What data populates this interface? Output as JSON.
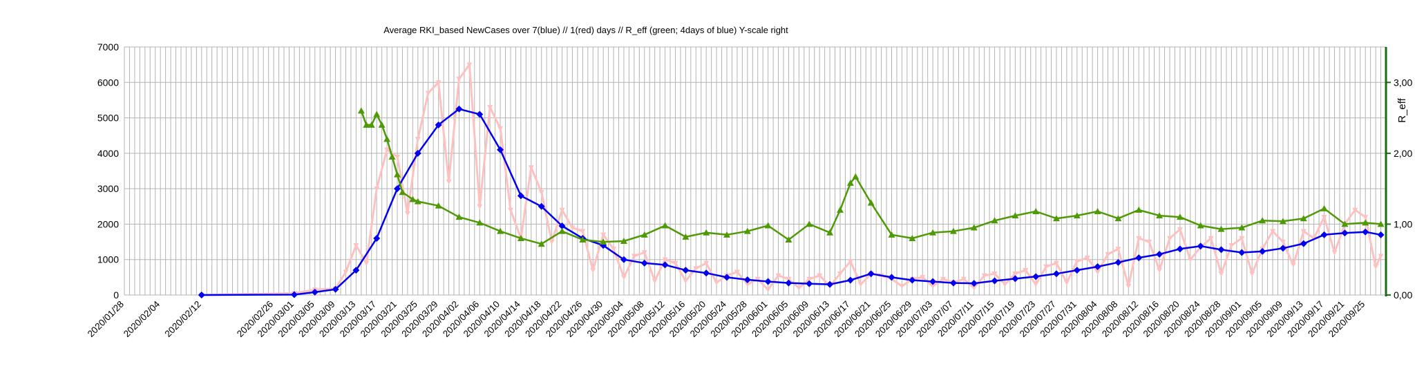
{
  "chart_data": {
    "type": "line",
    "title": "Average RKI_based NewCases over 7(blue) // 1(red) days //  R_eff (green; 4days of blue) Y-scale right",
    "y_label_left": "",
    "y_label_right": "R_eff",
    "ylim_left": [
      0,
      7000
    ],
    "ylim_right": [
      0,
      3.5
    ],
    "y_ticks_left": [
      "0",
      "1000",
      "2000",
      "3000",
      "4000",
      "5000",
      "6000",
      "7000"
    ],
    "y_ticks_right": [
      "0,00",
      "1,00",
      "2,00",
      "3,00"
    ],
    "x_tick_labels": [
      "2020/01/28",
      "2020/02/04",
      "2020/02/12",
      "2020/02/26",
      "2020/03/01",
      "2020/03/05",
      "2020/03/09",
      "2020/03/13",
      "2020/03/17",
      "2020/03/21",
      "2020/03/25",
      "2020/03/29",
      "2020/04/02",
      "2020/04/06",
      "2020/04/10",
      "2020/04/14",
      "2020/04/18",
      "2020/04/22",
      "2020/04/26",
      "2020/04/30",
      "2020/05/04",
      "2020/05/08",
      "2020/05/12",
      "2020/05/16",
      "2020/05/20",
      "2020/05/24",
      "2020/05/28",
      "2020/06/01",
      "2020/06/05",
      "2020/06/09",
      "2020/06/13",
      "2020/06/17",
      "2020/06/21",
      "2020/06/25",
      "2020/06/29",
      "2020/07/03",
      "2020/07/07",
      "2020/07/11",
      "2020/07/15",
      "2020/07/19",
      "2020/07/23",
      "2020/07/27",
      "2020/07/31",
      "2020/08/04",
      "2020/08/08",
      "2020/08/12",
      "2020/08/16",
      "2020/08/20",
      "2020/08/24",
      "2020/08/28",
      "2020/09/01",
      "2020/09/05",
      "2020/09/09",
      "2020/09/13",
      "2020/09/17",
      "2020/09/21",
      "2020/09/25"
    ],
    "grid": "vertical and horizontal",
    "colors": {
      "blue": "#0000ee",
      "red": "#ffc0c0",
      "green": "#4e9a06",
      "right_axis": "#1a6b12",
      "grid": "#b3b3b3"
    },
    "series": [
      {
        "color": "blue",
        "marker": "diamond",
        "axis": "left",
        "points": [
          [
            "2020/02/12",
            0
          ],
          [
            "2020/03/01",
            10
          ],
          [
            "2020/03/05",
            80
          ],
          [
            "2020/03/09",
            160
          ],
          [
            "2020/03/13",
            700
          ],
          [
            "2020/03/17",
            1600
          ],
          [
            "2020/03/21",
            3000
          ],
          [
            "2020/03/25",
            4000
          ],
          [
            "2020/03/29",
            4800
          ],
          [
            "2020/04/02",
            5250
          ],
          [
            "2020/04/06",
            5100
          ],
          [
            "2020/04/10",
            4100
          ],
          [
            "2020/04/14",
            2800
          ],
          [
            "2020/04/18",
            2500
          ],
          [
            "2020/04/22",
            1950
          ],
          [
            "2020/04/26",
            1600
          ],
          [
            "2020/04/30",
            1400
          ],
          [
            "2020/05/04",
            1000
          ],
          [
            "2020/05/08",
            900
          ],
          [
            "2020/05/12",
            850
          ],
          [
            "2020/05/16",
            700
          ],
          [
            "2020/05/20",
            620
          ],
          [
            "2020/05/24",
            500
          ],
          [
            "2020/05/28",
            430
          ],
          [
            "2020/06/01",
            380
          ],
          [
            "2020/06/05",
            340
          ],
          [
            "2020/06/09",
            320
          ],
          [
            "2020/06/13",
            300
          ],
          [
            "2020/06/17",
            420
          ],
          [
            "2020/06/21",
            600
          ],
          [
            "2020/06/25",
            500
          ],
          [
            "2020/06/29",
            420
          ],
          [
            "2020/07/03",
            380
          ],
          [
            "2020/07/07",
            340
          ],
          [
            "2020/07/11",
            330
          ],
          [
            "2020/07/15",
            400
          ],
          [
            "2020/07/19",
            460
          ],
          [
            "2020/07/23",
            520
          ],
          [
            "2020/07/27",
            600
          ],
          [
            "2020/07/31",
            700
          ],
          [
            "2020/08/04",
            800
          ],
          [
            "2020/08/08",
            920
          ],
          [
            "2020/08/12",
            1050
          ],
          [
            "2020/08/16",
            1150
          ],
          [
            "2020/08/20",
            1300
          ],
          [
            "2020/08/24",
            1380
          ],
          [
            "2020/08/28",
            1280
          ],
          [
            "2020/09/01",
            1200
          ],
          [
            "2020/09/05",
            1230
          ],
          [
            "2020/09/09",
            1320
          ],
          [
            "2020/09/13",
            1450
          ],
          [
            "2020/09/17",
            1700
          ],
          [
            "2020/09/21",
            1750
          ],
          [
            "2020/09/25",
            1780
          ],
          [
            "2020/09/28",
            1700
          ]
        ]
      },
      {
        "color": "red",
        "marker": "down-triangle",
        "axis": "left",
        "points": [
          [
            "2020/02/12",
            0
          ],
          [
            "2020/03/01",
            50
          ],
          [
            "2020/03/05",
            150
          ],
          [
            "2020/03/09",
            180
          ],
          [
            "2020/03/11",
            650
          ],
          [
            "2020/03/13",
            1400
          ],
          [
            "2020/03/15",
            900
          ],
          [
            "2020/03/17",
            3000
          ],
          [
            "2020/03/19",
            4100
          ],
          [
            "2020/03/21",
            3900
          ],
          [
            "2020/03/23",
            2300
          ],
          [
            "2020/03/25",
            4400
          ],
          [
            "2020/03/27",
            5700
          ],
          [
            "2020/03/29",
            6000
          ],
          [
            "2020/03/31",
            3200
          ],
          [
            "2020/04/02",
            6100
          ],
          [
            "2020/04/04",
            6500
          ],
          [
            "2020/04/06",
            2500
          ],
          [
            "2020/04/08",
            5300
          ],
          [
            "2020/04/10",
            4700
          ],
          [
            "2020/04/12",
            2400
          ],
          [
            "2020/04/14",
            1600
          ],
          [
            "2020/04/16",
            3600
          ],
          [
            "2020/04/18",
            2900
          ],
          [
            "2020/04/20",
            1500
          ],
          [
            "2020/04/22",
            2400
          ],
          [
            "2020/04/24",
            1900
          ],
          [
            "2020/04/26",
            1800
          ],
          [
            "2020/04/28",
            700
          ],
          [
            "2020/04/30",
            1700
          ],
          [
            "2020/05/02",
            1300
          ],
          [
            "2020/05/04",
            500
          ],
          [
            "2020/05/06",
            1100
          ],
          [
            "2020/05/08",
            1200
          ],
          [
            "2020/05/10",
            400
          ],
          [
            "2020/05/12",
            1000
          ],
          [
            "2020/05/14",
            900
          ],
          [
            "2020/05/16",
            400
          ],
          [
            "2020/05/18",
            750
          ],
          [
            "2020/05/20",
            900
          ],
          [
            "2020/05/22",
            350
          ],
          [
            "2020/05/24",
            550
          ],
          [
            "2020/05/26",
            650
          ],
          [
            "2020/05/28",
            300
          ],
          [
            "2020/05/30",
            450
          ],
          [
            "2020/06/01",
            150
          ],
          [
            "2020/06/03",
            550
          ],
          [
            "2020/06/05",
            450
          ],
          [
            "2020/06/07",
            200
          ],
          [
            "2020/06/09",
            450
          ],
          [
            "2020/06/11",
            550
          ],
          [
            "2020/06/13",
            250
          ],
          [
            "2020/06/15",
            600
          ],
          [
            "2020/06/17",
            950
          ],
          [
            "2020/06/19",
            300
          ],
          [
            "2020/06/21",
            600
          ],
          [
            "2020/06/23",
            550
          ],
          [
            "2020/06/25",
            450
          ],
          [
            "2020/06/27",
            250
          ],
          [
            "2020/06/29",
            450
          ],
          [
            "2020/07/01",
            500
          ],
          [
            "2020/07/03",
            250
          ],
          [
            "2020/07/05",
            450
          ],
          [
            "2020/07/07",
            350
          ],
          [
            "2020/07/09",
            450
          ],
          [
            "2020/07/11",
            200
          ],
          [
            "2020/07/13",
            550
          ],
          [
            "2020/07/15",
            600
          ],
          [
            "2020/07/17",
            300
          ],
          [
            "2020/07/19",
            600
          ],
          [
            "2020/07/21",
            700
          ],
          [
            "2020/07/23",
            300
          ],
          [
            "2020/07/25",
            800
          ],
          [
            "2020/07/27",
            900
          ],
          [
            "2020/07/29",
            350
          ],
          [
            "2020/07/31",
            950
          ],
          [
            "2020/08/02",
            1050
          ],
          [
            "2020/08/04",
            650
          ],
          [
            "2020/08/06",
            1150
          ],
          [
            "2020/08/08",
            1300
          ],
          [
            "2020/08/10",
            250
          ],
          [
            "2020/08/12",
            1600
          ],
          [
            "2020/08/14",
            1500
          ],
          [
            "2020/08/16",
            700
          ],
          [
            "2020/08/18",
            1600
          ],
          [
            "2020/08/20",
            1850
          ],
          [
            "2020/08/22",
            1000
          ],
          [
            "2020/08/24",
            1350
          ],
          [
            "2020/08/26",
            1600
          ],
          [
            "2020/08/28",
            600
          ],
          [
            "2020/08/30",
            1400
          ],
          [
            "2020/09/01",
            1600
          ],
          [
            "2020/09/03",
            600
          ],
          [
            "2020/09/05",
            1300
          ],
          [
            "2020/09/07",
            1800
          ],
          [
            "2020/09/09",
            1500
          ],
          [
            "2020/09/11",
            850
          ],
          [
            "2020/09/13",
            1800
          ],
          [
            "2020/09/15",
            1600
          ],
          [
            "2020/09/17",
            2200
          ],
          [
            "2020/09/19",
            1200
          ],
          [
            "2020/09/21",
            2000
          ],
          [
            "2020/09/23",
            2400
          ],
          [
            "2020/09/25",
            2200
          ],
          [
            "2020/09/27",
            800
          ],
          [
            "2020/09/28",
            1100
          ]
        ]
      },
      {
        "color": "green",
        "marker": "up-triangle",
        "axis": "right",
        "points": [
          [
            "2020/03/14",
            2.6
          ],
          [
            "2020/03/15",
            2.4
          ],
          [
            "2020/03/16",
            2.4
          ],
          [
            "2020/03/17",
            2.55
          ],
          [
            "2020/03/18",
            2.4
          ],
          [
            "2020/03/19",
            2.2
          ],
          [
            "2020/03/20",
            1.95
          ],
          [
            "2020/03/21",
            1.7
          ],
          [
            "2020/03/22",
            1.45
          ],
          [
            "2020/03/24",
            1.35
          ],
          [
            "2020/03/25",
            1.32
          ],
          [
            "2020/03/29",
            1.26
          ],
          [
            "2020/04/02",
            1.1
          ],
          [
            "2020/04/06",
            1.02
          ],
          [
            "2020/04/10",
            0.9
          ],
          [
            "2020/04/14",
            0.8
          ],
          [
            "2020/04/18",
            0.72
          ],
          [
            "2020/04/22",
            0.9
          ],
          [
            "2020/04/26",
            0.78
          ],
          [
            "2020/04/30",
            0.75
          ],
          [
            "2020/05/04",
            0.76
          ],
          [
            "2020/05/08",
            0.85
          ],
          [
            "2020/05/12",
            0.98
          ],
          [
            "2020/05/16",
            0.82
          ],
          [
            "2020/05/20",
            0.88
          ],
          [
            "2020/05/24",
            0.85
          ],
          [
            "2020/05/28",
            0.9
          ],
          [
            "2020/06/01",
            0.98
          ],
          [
            "2020/06/05",
            0.78
          ],
          [
            "2020/06/09",
            1.0
          ],
          [
            "2020/06/13",
            0.88
          ],
          [
            "2020/06/15",
            1.2
          ],
          [
            "2020/06/17",
            1.58
          ],
          [
            "2020/06/18",
            1.67
          ],
          [
            "2020/06/21",
            1.3
          ],
          [
            "2020/06/25",
            0.85
          ],
          [
            "2020/06/29",
            0.8
          ],
          [
            "2020/07/03",
            0.88
          ],
          [
            "2020/07/07",
            0.9
          ],
          [
            "2020/07/11",
            0.95
          ],
          [
            "2020/07/15",
            1.05
          ],
          [
            "2020/07/19",
            1.12
          ],
          [
            "2020/07/23",
            1.18
          ],
          [
            "2020/07/27",
            1.08
          ],
          [
            "2020/07/31",
            1.12
          ],
          [
            "2020/08/04",
            1.18
          ],
          [
            "2020/08/08",
            1.08
          ],
          [
            "2020/08/12",
            1.2
          ],
          [
            "2020/08/16",
            1.12
          ],
          [
            "2020/08/20",
            1.1
          ],
          [
            "2020/08/24",
            0.98
          ],
          [
            "2020/08/28",
            0.93
          ],
          [
            "2020/09/01",
            0.95
          ],
          [
            "2020/09/05",
            1.05
          ],
          [
            "2020/09/09",
            1.04
          ],
          [
            "2020/09/13",
            1.08
          ],
          [
            "2020/09/17",
            1.22
          ],
          [
            "2020/09/21",
            1.0
          ],
          [
            "2020/09/25",
            1.02
          ],
          [
            "2020/09/28",
            1.0
          ]
        ]
      }
    ]
  }
}
